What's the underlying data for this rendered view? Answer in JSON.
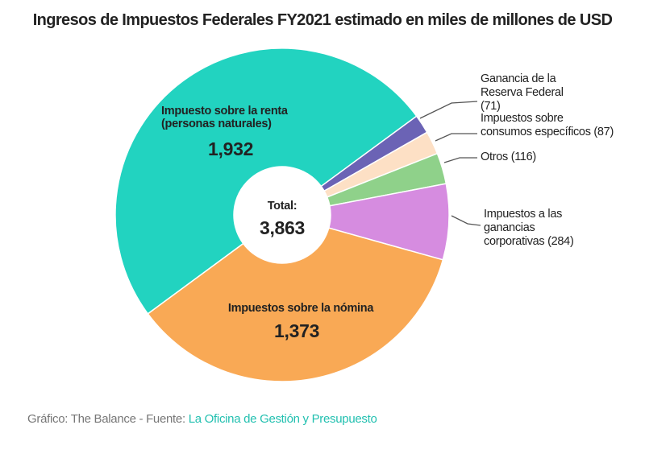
{
  "chart_data": {
    "type": "donut",
    "title": "Ingresos de Impuestos Federales FY2021 estimado en miles de millones de USD",
    "categories": [
      "Impuesto sobre la renta (personas naturales)",
      "Ganancia de la Reserva Federal",
      "Impuestos sobre consumos específicos",
      "Otros",
      "Impuestos a las ganancias corporativas",
      "Impuestos sobre la nómina"
    ],
    "values": [
      1932,
      71,
      87,
      116,
      284,
      1373
    ],
    "value_labels": [
      "1,932",
      "(71)",
      "(87)",
      "(116)",
      "(284)",
      "1,373"
    ],
    "colors": [
      "#22d3c0",
      "#6b63b5",
      "#fde0c5",
      "#8fd18a",
      "#d68ce0",
      "#f9a955"
    ],
    "total": {
      "label": "Total:",
      "value": 3863,
      "value_label": "3,863"
    },
    "source": {
      "prefix": "Gráfico: The Balance - Fuente:",
      "name": "La Oficina de Gestión y Presupuesto"
    }
  }
}
